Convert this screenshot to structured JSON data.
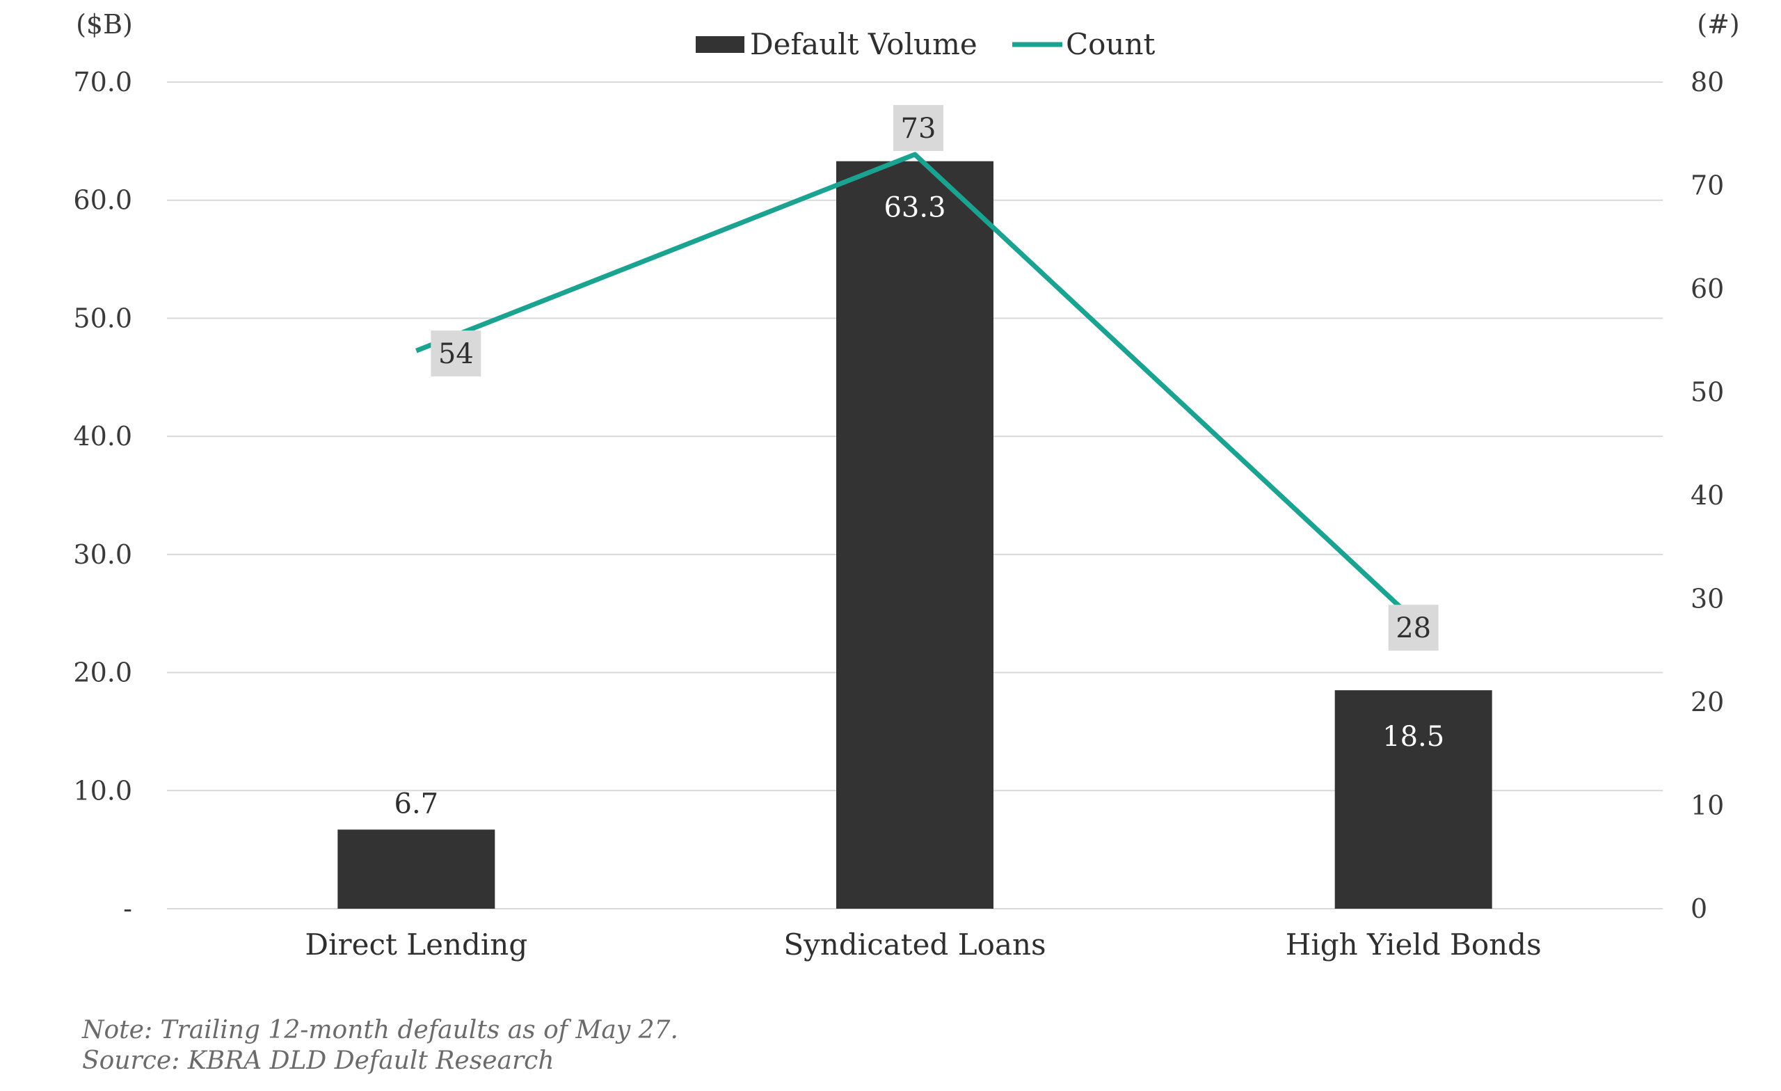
{
  "colors": {
    "bar": "#333333",
    "line": "#1aa391",
    "grid": "#d9d9d9",
    "label_box": "#d9d9d9"
  },
  "chart_data": {
    "type": "bar",
    "categories": [
      "Direct Lending",
      "Syndicated Loans",
      "High Yield Bonds"
    ],
    "series": [
      {
        "name": "Default Volume",
        "type": "bar",
        "axis": "left",
        "values": [
          6.7,
          63.3,
          18.5
        ],
        "labels": [
          "6.7",
          "63.3",
          "18.5"
        ]
      },
      {
        "name": "Count",
        "type": "line",
        "axis": "right",
        "values": [
          54,
          73,
          28
        ],
        "labels": [
          "54",
          "73",
          "28"
        ]
      }
    ],
    "y_left": {
      "unit": "($B)",
      "range": [
        0,
        70
      ],
      "ticks": [
        0,
        10,
        20,
        30,
        40,
        50,
        60,
        70
      ],
      "tick_labels": [
        "-",
        "10.0",
        "20.0",
        "30.0",
        "40.0",
        "50.0",
        "60.0",
        "70.0"
      ]
    },
    "y_right": {
      "unit": "(#)",
      "range": [
        0,
        80
      ],
      "ticks": [
        0,
        10,
        20,
        30,
        40,
        50,
        60,
        70,
        80
      ],
      "tick_labels": [
        "0",
        "10",
        "20",
        "30",
        "40",
        "50",
        "60",
        "70",
        "80"
      ]
    },
    "legend": {
      "position": "top-center",
      "items": [
        {
          "label": "Default Volume",
          "kind": "bar"
        },
        {
          "label": "Count",
          "kind": "line"
        }
      ]
    },
    "grid": true
  },
  "notes": {
    "line1": "Note: Trailing 12-month defaults as of May 27.",
    "line2": "Source: KBRA DLD Default Research"
  }
}
